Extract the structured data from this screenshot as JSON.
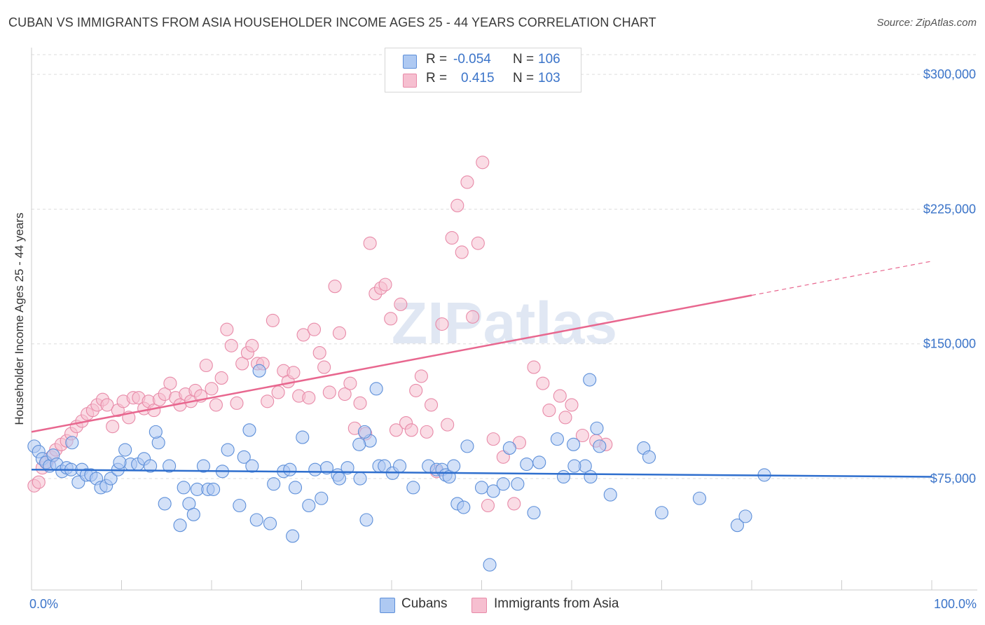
{
  "title": "CUBAN VS IMMIGRANTS FROM ASIA HOUSEHOLDER INCOME AGES 25 - 44 YEARS CORRELATION CHART",
  "source": "Source: ZipAtlas.com",
  "watermark": "ZIPatlas",
  "legend": {
    "rows": [
      {
        "r_label": "R =",
        "r_value": "-0.054",
        "n_label": "N =",
        "n_value": "106"
      },
      {
        "r_label": "R =",
        "r_value": "0.415",
        "n_label": "N =",
        "n_value": "103"
      }
    ]
  },
  "bottom_legend": {
    "series1": "Cubans",
    "series2": "Immigrants from Asia"
  },
  "x_axis": {
    "min_label": "0.0%",
    "max_label": "100.0%"
  },
  "colors": {
    "blue_fill": "#aec9f2",
    "blue_stroke": "#5d8fd9",
    "blue_line": "#2f6fce",
    "pink_fill": "#f6bfd0",
    "pink_stroke": "#e88aa8",
    "pink_line": "#e8678f",
    "tick_text": "#3b74c9",
    "grid": "#dddddd"
  },
  "chart_data": {
    "type": "scatter",
    "title": "CUBAN VS IMMIGRANTS FROM ASIA HOUSEHOLDER INCOME AGES 25 - 44 YEARS CORRELATION CHART",
    "xlabel": "",
    "ylabel": "Householder Income Ages 25 - 44 years",
    "xlim": [
      0,
      100
    ],
    "ylim": [
      13000,
      318000
    ],
    "y_ticks": [
      75000,
      150000,
      225000,
      300000
    ],
    "y_tick_labels": [
      "$75,000",
      "$150,000",
      "$225,000",
      "$300,000"
    ],
    "grid": "horizontal dashed",
    "legend_position": "top-center",
    "series": [
      {
        "name": "Cubans",
        "color": "#aec9f2",
        "trend": {
          "x0": 0,
          "y0": 80000,
          "x1": 100,
          "y1": 76000
        },
        "points": [
          [
            0.3,
            93000
          ],
          [
            0.8,
            90000
          ],
          [
            1.2,
            86000
          ],
          [
            1.6,
            84000
          ],
          [
            2.0,
            82000
          ],
          [
            2.4,
            88000
          ],
          [
            2.8,
            83000
          ],
          [
            3.4,
            79000
          ],
          [
            3.9,
            81000
          ],
          [
            4.4,
            80000
          ],
          [
            5.2,
            73000
          ],
          [
            5.6,
            80000
          ],
          [
            6.1,
            77000
          ],
          [
            6.6,
            77000
          ],
          [
            7.2,
            75000
          ],
          [
            7.7,
            70000
          ],
          [
            8.3,
            71000
          ],
          [
            8.8,
            75000
          ],
          [
            9.6,
            80000
          ],
          [
            10.4,
            91000
          ],
          [
            11.0,
            83000
          ],
          [
            11.8,
            83000
          ],
          [
            12.5,
            86000
          ],
          [
            13.2,
            82000
          ],
          [
            14.1,
            95000
          ],
          [
            14.8,
            61000
          ],
          [
            15.3,
            82000
          ],
          [
            13.8,
            101000
          ],
          [
            16.5,
            49000
          ],
          [
            16.9,
            70000
          ],
          [
            17.5,
            61000
          ],
          [
            18.0,
            55000
          ],
          [
            18.4,
            69000
          ],
          [
            19.1,
            82000
          ],
          [
            19.6,
            69000
          ],
          [
            20.2,
            69000
          ],
          [
            21.2,
            79000
          ],
          [
            21.8,
            91000
          ],
          [
            23.1,
            60000
          ],
          [
            23.6,
            87000
          ],
          [
            24.2,
            102000
          ],
          [
            24.5,
            82000
          ],
          [
            25.0,
            52000
          ],
          [
            26.5,
            50000
          ],
          [
            26.9,
            72000
          ],
          [
            28.0,
            79000
          ],
          [
            28.7,
            80000
          ],
          [
            29.0,
            43000
          ],
          [
            29.3,
            70000
          ],
          [
            30.1,
            98000
          ],
          [
            30.8,
            60000
          ],
          [
            31.5,
            80000
          ],
          [
            32.2,
            64000
          ],
          [
            32.8,
            81000
          ],
          [
            34.0,
            77000
          ],
          [
            34.2,
            75000
          ],
          [
            35.1,
            81000
          ],
          [
            36.5,
            75000
          ],
          [
            37.2,
            52000
          ],
          [
            37.6,
            96000
          ],
          [
            38.6,
            82000
          ],
          [
            39.2,
            82000
          ],
          [
            38.3,
            125000
          ],
          [
            40.1,
            78000
          ],
          [
            40.9,
            82000
          ],
          [
            42.4,
            70000
          ],
          [
            44.1,
            82000
          ],
          [
            45.0,
            80000
          ],
          [
            45.6,
            80000
          ],
          [
            46.0,
            77000
          ],
          [
            46.4,
            76000
          ],
          [
            46.9,
            82000
          ],
          [
            47.3,
            61000
          ],
          [
            48.0,
            59000
          ],
          [
            48.4,
            93000
          ],
          [
            50.0,
            70000
          ],
          [
            50.9,
            27000
          ],
          [
            51.3,
            68000
          ],
          [
            52.4,
            72000
          ],
          [
            53.1,
            92000
          ],
          [
            54.0,
            72000
          ],
          [
            55.0,
            83000
          ],
          [
            55.8,
            56000
          ],
          [
            56.4,
            84000
          ],
          [
            58.4,
            97000
          ],
          [
            59.1,
            76000
          ],
          [
            60.2,
            94000
          ],
          [
            61.5,
            82000
          ],
          [
            62.1,
            76000
          ],
          [
            63.1,
            93000
          ],
          [
            62.8,
            103000
          ],
          [
            64.3,
            66000
          ],
          [
            68.0,
            92000
          ],
          [
            68.6,
            87000
          ],
          [
            70.0,
            56000
          ],
          [
            74.2,
            64000
          ],
          [
            78.4,
            49000
          ],
          [
            79.3,
            54000
          ],
          [
            81.4,
            77000
          ],
          [
            37.0,
            101000
          ],
          [
            4.5,
            95000
          ],
          [
            9.8,
            84000
          ],
          [
            25.3,
            135000
          ],
          [
            36.4,
            94000
          ],
          [
            62.0,
            130000
          ],
          [
            60.3,
            82000
          ]
        ]
      },
      {
        "name": "Immigrants from Asia",
        "color": "#f6bfd0",
        "trend": {
          "x0": 0,
          "y0": 101000,
          "x1": 100,
          "y1": 196000
        },
        "points": [
          [
            0.3,
            71000
          ],
          [
            0.8,
            73000
          ],
          [
            1.2,
            81000
          ],
          [
            1.7,
            84000
          ],
          [
            2.2,
            87000
          ],
          [
            2.7,
            91000
          ],
          [
            3.3,
            94000
          ],
          [
            3.9,
            96000
          ],
          [
            4.4,
            100000
          ],
          [
            5.0,
            104000
          ],
          [
            5.6,
            107000
          ],
          [
            6.2,
            111000
          ],
          [
            6.8,
            113000
          ],
          [
            7.3,
            116000
          ],
          [
            7.9,
            119000
          ],
          [
            8.4,
            116000
          ],
          [
            9.0,
            104000
          ],
          [
            9.6,
            113000
          ],
          [
            10.2,
            118000
          ],
          [
            10.8,
            109000
          ],
          [
            11.3,
            120000
          ],
          [
            11.9,
            120000
          ],
          [
            12.5,
            114000
          ],
          [
            13.0,
            118000
          ],
          [
            13.6,
            113000
          ],
          [
            14.2,
            119000
          ],
          [
            14.8,
            122000
          ],
          [
            15.4,
            128000
          ],
          [
            16.0,
            120000
          ],
          [
            16.5,
            116000
          ],
          [
            17.1,
            122000
          ],
          [
            17.7,
            118000
          ],
          [
            18.2,
            124000
          ],
          [
            18.8,
            121000
          ],
          [
            19.4,
            138000
          ],
          [
            20.0,
            125000
          ],
          [
            20.5,
            116000
          ],
          [
            21.1,
            131000
          ],
          [
            21.7,
            158000
          ],
          [
            22.2,
            149000
          ],
          [
            22.8,
            117000
          ],
          [
            23.4,
            139000
          ],
          [
            24.0,
            145000
          ],
          [
            24.5,
            149000
          ],
          [
            25.1,
            139000
          ],
          [
            25.7,
            139000
          ],
          [
            26.2,
            118000
          ],
          [
            26.8,
            163000
          ],
          [
            27.4,
            123000
          ],
          [
            28.0,
            135000
          ],
          [
            28.5,
            129000
          ],
          [
            29.1,
            134000
          ],
          [
            29.7,
            121000
          ],
          [
            30.2,
            155000
          ],
          [
            30.8,
            120000
          ],
          [
            31.4,
            158000
          ],
          [
            32.0,
            145000
          ],
          [
            32.5,
            137000
          ],
          [
            33.1,
            123000
          ],
          [
            33.7,
            182000
          ],
          [
            34.2,
            156000
          ],
          [
            34.8,
            122000
          ],
          [
            35.4,
            128000
          ],
          [
            35.9,
            103000
          ],
          [
            36.5,
            117000
          ],
          [
            37.1,
            100000
          ],
          [
            37.6,
            206000
          ],
          [
            38.2,
            178000
          ],
          [
            38.8,
            181000
          ],
          [
            39.3,
            183000
          ],
          [
            39.9,
            164000
          ],
          [
            40.5,
            102000
          ],
          [
            41.0,
            172000
          ],
          [
            41.6,
            106000
          ],
          [
            42.2,
            102000
          ],
          [
            42.7,
            124000
          ],
          [
            43.3,
            132000
          ],
          [
            43.9,
            101000
          ],
          [
            44.4,
            116000
          ],
          [
            45.0,
            79000
          ],
          [
            45.6,
            161000
          ],
          [
            46.2,
            105000
          ],
          [
            46.7,
            209000
          ],
          [
            47.3,
            227000
          ],
          [
            47.8,
            201000
          ],
          [
            48.4,
            240000
          ],
          [
            49.0,
            165000
          ],
          [
            49.6,
            206000
          ],
          [
            50.1,
            251000
          ],
          [
            50.7,
            60000
          ],
          [
            51.3,
            97000
          ],
          [
            52.4,
            87000
          ],
          [
            53.6,
            61000
          ],
          [
            54.2,
            95000
          ],
          [
            55.8,
            137000
          ],
          [
            56.8,
            128000
          ],
          [
            57.5,
            113000
          ],
          [
            58.7,
            121000
          ],
          [
            59.3,
            109000
          ],
          [
            60.0,
            116000
          ],
          [
            61.2,
            99000
          ],
          [
            62.7,
            96000
          ],
          [
            63.8,
            94000
          ]
        ]
      }
    ]
  }
}
